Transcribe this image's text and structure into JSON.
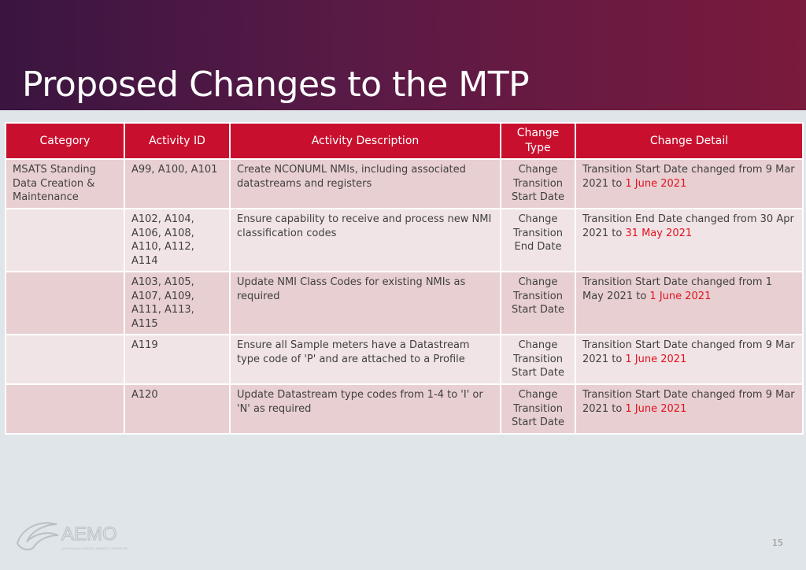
{
  "slide": {
    "title": "Proposed Changes to the MTP",
    "page_number": "15",
    "logo_text": "AEMO",
    "logo_tagline": "AUSTRALIAN ENERGY MARKET OPERATOR"
  },
  "table": {
    "headers": [
      "Category",
      "Activity ID",
      "Activity Description",
      "Change\nType",
      "Change Detail"
    ],
    "rows": [
      {
        "category": "MSATS Standing Data Creation & Maintenance",
        "activity_id": "A99, A100, A101",
        "description": "Create NCONUML NMIs, including associated datastreams and registers",
        "change_type": "Change Transition Start Date",
        "detail_prefix": "Transition Start Date changed from 9 Mar 2021 to ",
        "detail_new_date": "1 June 2021"
      },
      {
        "category": "",
        "activity_id": "A102, A104, A106, A108, A110, A112, A114",
        "description": "Ensure capability to receive and process new NMI classification codes",
        "change_type": "Change Transition End Date",
        "detail_prefix": "Transition End Date changed from 30 Apr 2021 to ",
        "detail_new_date": "31 May 2021"
      },
      {
        "category": "",
        "activity_id": "A103, A105, A107, A109, A111, A113, A115",
        "description": "Update NMI Class Codes for existing NMIs as required",
        "change_type": "Change Transition Start Date",
        "detail_prefix": "Transition Start Date changed from 1 May 2021 to ",
        "detail_new_date": "1 June 2021"
      },
      {
        "category": "",
        "activity_id": "A119",
        "description": "Ensure all Sample meters have a Datastream type code of 'P' and are attached to a Profile",
        "change_type": "Change Transition Start Date",
        "detail_prefix": "Transition Start Date changed from 9 Mar 2021 to ",
        "detail_new_date": "1 June 2021"
      },
      {
        "category": "",
        "activity_id": "A120",
        "description": "Update Datastream type codes from 1-4 to 'I' or 'N' as required",
        "change_type": "Change Transition Start Date",
        "detail_prefix": "Transition Start Date changed from 9 Mar 2021 to ",
        "detail_new_date": "1 June 2021"
      }
    ]
  },
  "colors": {
    "header_fill": "#c8102e",
    "highlight_date": "#e0121f"
  }
}
